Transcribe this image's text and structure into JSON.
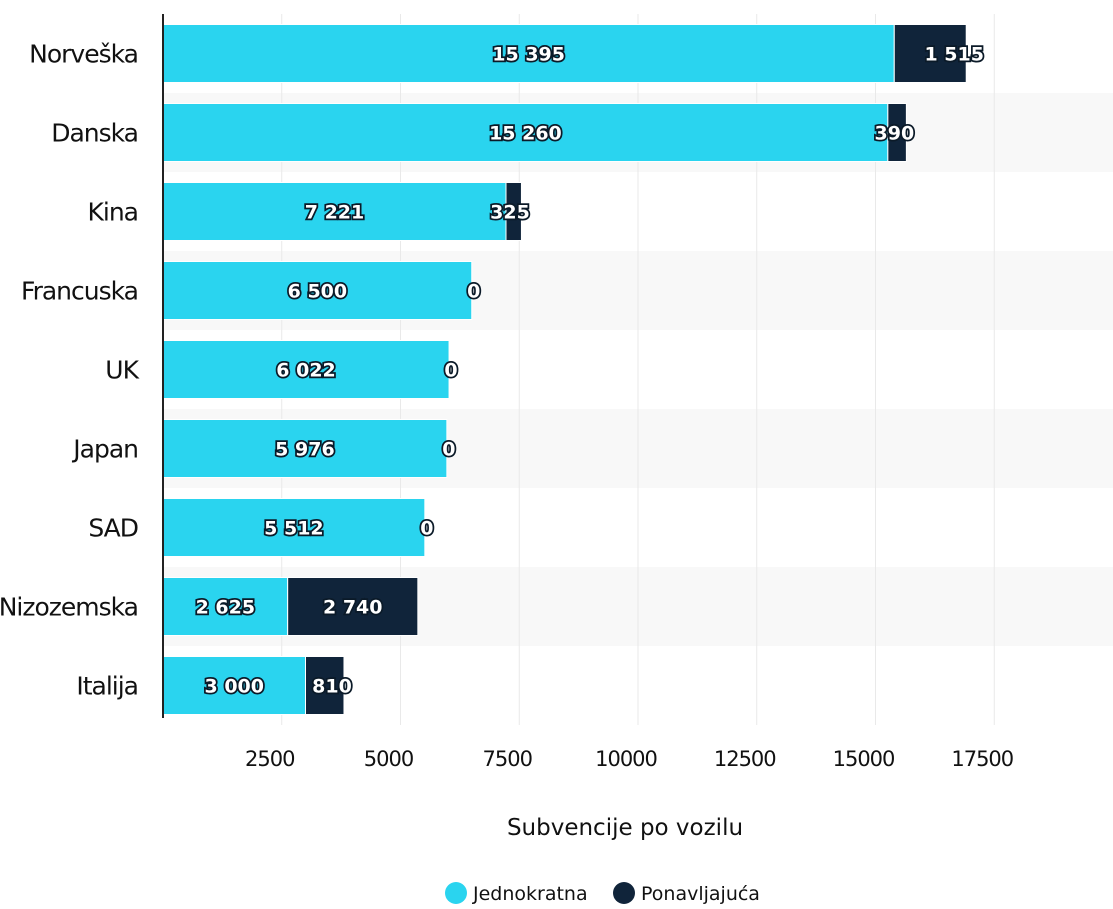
{
  "chart_data": {
    "type": "bar",
    "orientation": "horizontal",
    "stacked": true,
    "categories": [
      "Norveška",
      "Danska",
      "Kina",
      "Francuska",
      "UK",
      "Japan",
      "SAD",
      "Nizozemska",
      "Italija"
    ],
    "series": [
      {
        "name": "Jednokratna",
        "color": "#2ad4ef",
        "values": [
          15395,
          15260,
          7221,
          6500,
          6022,
          5976,
          5512,
          2625,
          3000
        ],
        "labels": [
          "15 395",
          "15 260",
          "7 221",
          "6 500",
          "6 022",
          "5 976",
          "5 512",
          "2 625",
          "3 000"
        ]
      },
      {
        "name": "Ponavljajuća",
        "color": "#10243a",
        "values": [
          1515,
          390,
          325,
          0,
          0,
          0,
          0,
          2740,
          810
        ],
        "labels": [
          "1 515",
          "390",
          "325",
          "0",
          "0",
          "0",
          "0",
          "2 740",
          "810"
        ]
      }
    ],
    "xlabel": "Subvencije po vozilu",
    "xlim": [
      0,
      20000
    ],
    "xticks": [
      2500,
      5000,
      7500,
      10000,
      12500,
      15000,
      17500
    ],
    "xtick_labels": [
      "2500",
      "5000",
      "7500",
      "10000",
      "12500",
      "15000",
      "17500"
    ],
    "grid": true,
    "legend_position": "bottom-center"
  }
}
